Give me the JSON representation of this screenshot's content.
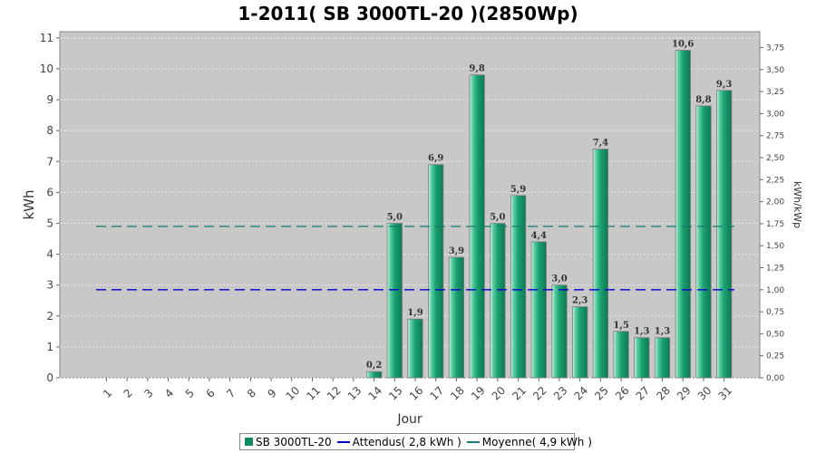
{
  "chart_data": {
    "type": "bar",
    "title": "1-2011( SB 3000TL-20 )(2850Wp)",
    "xlabel": "Jour",
    "ylabel": "kWh",
    "ylabel_right": "kWh/kWp",
    "categories": [
      "1",
      "2",
      "3",
      "4",
      "5",
      "6",
      "7",
      "8",
      "9",
      "10",
      "11",
      "12",
      "13",
      "14",
      "15",
      "16",
      "17",
      "18",
      "19",
      "20",
      "21",
      "22",
      "23",
      "24",
      "25",
      "26",
      "27",
      "28",
      "29",
      "30",
      "31"
    ],
    "series": [
      {
        "name": "SB 3000TL-20",
        "values": [
          0,
          0,
          0,
          0,
          0,
          0,
          0,
          0,
          0,
          0,
          0,
          0,
          0,
          0.2,
          5.0,
          1.9,
          6.9,
          3.9,
          9.8,
          5.0,
          5.9,
          4.4,
          3.0,
          2.3,
          7.4,
          1.5,
          1.3,
          1.3,
          10.6,
          8.8,
          9.3
        ],
        "labels": [
          "",
          "",
          "",
          "",
          "",
          "",
          "",
          "",
          "",
          "",
          "",
          "",
          "",
          "0,2",
          "5,0",
          "1,9",
          "6,9",
          "3,9",
          "9,8",
          "5,0",
          "5,9",
          "4,4",
          "3,0",
          "2,3",
          "7,4",
          "1,5",
          "1,3",
          "1,3",
          "10,6",
          "8,8",
          "9,3"
        ],
        "color": "#1aa070"
      }
    ],
    "reference_lines": [
      {
        "name": "Attendus",
        "value": 2.85,
        "color": "#0000cc"
      },
      {
        "name": "Moyenne",
        "value": 4.9,
        "color": "#147a6e"
      }
    ],
    "ylim": [
      0,
      11.2
    ],
    "yticks": [
      "0",
      "1",
      "2",
      "3",
      "4",
      "5",
      "6",
      "7",
      "8",
      "9",
      "10",
      "11"
    ],
    "ylim_right": [
      0,
      3.93
    ],
    "yticks_right": [
      "0,00",
      "0,25",
      "0,50",
      "0,75",
      "1,00",
      "1,25",
      "1,50",
      "1,75",
      "2,00",
      "2,25",
      "2,50",
      "2,75",
      "3,00",
      "3,25",
      "3,50",
      "3,75"
    ],
    "grid": true,
    "legend_position": "bottom",
    "plot_background": "#c8c8c8"
  },
  "legend": [
    {
      "label": "SB 3000TL-20"
    },
    {
      "label": "Attendus( 2,8 kWh )"
    },
    {
      "label": "Moyenne( 4,9 kWh )"
    }
  ]
}
